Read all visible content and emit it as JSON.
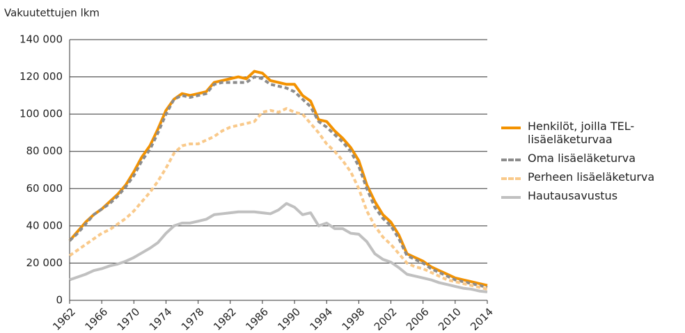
{
  "chart_data": {
    "type": "line",
    "title": "Vakuutettujen lkm",
    "x": [
      1962,
      1963,
      1964,
      1965,
      1966,
      1967,
      1968,
      1969,
      1970,
      1971,
      1972,
      1973,
      1974,
      1975,
      1976,
      1977,
      1978,
      1979,
      1980,
      1981,
      1982,
      1983,
      1984,
      1985,
      1986,
      1987,
      1988,
      1989,
      1990,
      1991,
      1992,
      1993,
      1994,
      1995,
      1996,
      1997,
      1998,
      1999,
      2000,
      2001,
      2002,
      2003,
      2004,
      2005,
      2006,
      2007,
      2008,
      2009,
      2010,
      2011,
      2012,
      2013,
      2014
    ],
    "series": [
      {
        "name": "Henkilöt, joilla TEL-lisäeläketurvaa",
        "color": "#f39200",
        "dashed": false,
        "values": [
          32000,
          37000,
          42000,
          46000,
          49000,
          53000,
          57000,
          62000,
          69000,
          77000,
          83000,
          92000,
          102000,
          108000,
          111000,
          110000,
          111000,
          112000,
          117000,
          118000,
          119000,
          120000,
          119000,
          123000,
          122000,
          118000,
          117000,
          116000,
          116000,
          110000,
          107000,
          97000,
          96000,
          91000,
          87000,
          82000,
          75000,
          62000,
          53000,
          46000,
          42000,
          35000,
          25000,
          23000,
          21000,
          18000,
          16000,
          14000,
          12000,
          11000,
          10000,
          9000,
          8000
        ]
      },
      {
        "name": "Oma lisäeläketurva",
        "color": "#8c8c8c",
        "dashed": true,
        "values": [
          32000,
          36000,
          41000,
          46000,
          49000,
          52000,
          56000,
          61000,
          67000,
          75000,
          81000,
          90000,
          100000,
          108000,
          110000,
          109000,
          110000,
          111000,
          116000,
          117000,
          117000,
          117000,
          117000,
          120000,
          119000,
          116000,
          115000,
          114000,
          112000,
          108000,
          104000,
          96000,
          93000,
          89000,
          85000,
          80000,
          72000,
          60000,
          50000,
          44000,
          40000,
          33000,
          24000,
          22000,
          20000,
          17000,
          15000,
          13000,
          11000,
          10000,
          9000,
          8000,
          7000
        ]
      },
      {
        "name": "Perheen lisäeläketurva",
        "color": "#f9c98a",
        "dashed": true,
        "values": [
          24000,
          27000,
          30000,
          33000,
          36000,
          38000,
          41000,
          44000,
          48000,
          53000,
          58000,
          64000,
          71000,
          79000,
          83000,
          84000,
          84000,
          86000,
          88000,
          91000,
          93000,
          94000,
          95000,
          96000,
          101000,
          102000,
          101000,
          103000,
          101000,
          100000,
          95000,
          90000,
          84000,
          80000,
          75000,
          69000,
          60000,
          48000,
          40000,
          34000,
          30000,
          25000,
          20000,
          18000,
          17000,
          15000,
          13000,
          11000,
          10000,
          9000,
          8000,
          7000,
          6000
        ]
      },
      {
        "name": "Hautausavustus",
        "color": "#c0c0c0",
        "dashed": false,
        "values": [
          11000,
          12500,
          14000,
          16000,
          17000,
          18500,
          19500,
          21000,
          23000,
          25500,
          28000,
          31000,
          36000,
          40000,
          41500,
          41500,
          42500,
          43500,
          46000,
          46500,
          47000,
          47500,
          47500,
          47500,
          47000,
          46500,
          48500,
          52000,
          50000,
          46000,
          47000,
          40000,
          41500,
          38500,
          38500,
          36000,
          35500,
          31500,
          25000,
          22000,
          20500,
          17500,
          14000,
          13000,
          12000,
          11000,
          9500,
          8500,
          7500,
          6500,
          6000,
          5000,
          4500
        ]
      }
    ],
    "xlim": [
      1962,
      2014
    ],
    "xticks": [
      1962,
      1966,
      1970,
      1974,
      1978,
      1982,
      1986,
      1990,
      1994,
      1998,
      2002,
      2006,
      2010,
      2014
    ],
    "ylim": [
      0,
      140000
    ],
    "yticks": [
      0,
      {
        "value": 20000,
        "label": "20 000"
      },
      {
        "value": 40000,
        "label": "40 000"
      },
      {
        "value": 60000,
        "label": "60 000"
      },
      {
        "value": 80000,
        "label": "80 000"
      },
      {
        "value": 100000,
        "label": "100 000"
      },
      {
        "value": 120000,
        "label": "120 000"
      },
      {
        "value": 140000,
        "label": "140 000"
      }
    ],
    "grid": true,
    "legend": "right"
  }
}
